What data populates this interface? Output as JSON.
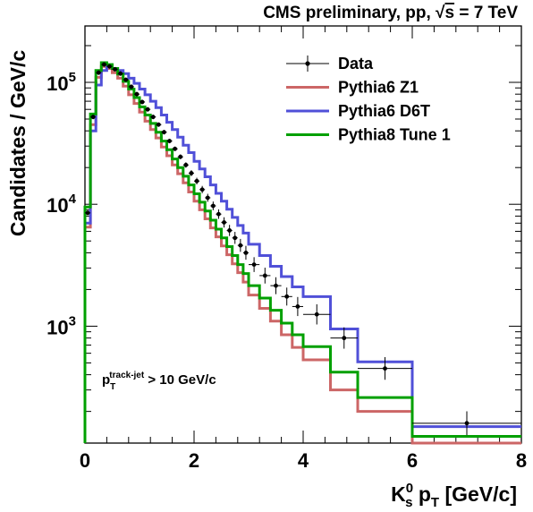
{
  "chart_data": {
    "type": "line",
    "title": "CMS preliminary, pp, √s = 7 TeV",
    "title_parts": {
      "prefix": "CMS preliminary, pp, ",
      "sqrt_symbol": "√",
      "sqrt_arg": "s",
      "suffix": " = 7 TeV"
    },
    "xlabel": "K_S^0 p_T [GeV/c]",
    "xlabel_parts": {
      "main": "K",
      "sup": "0",
      "sub": "s",
      "mid": " p",
      "sub2": "T",
      "tail": " [GeV/c]"
    },
    "ylabel": "Candidates / GeV/c",
    "xlim": [
      0,
      8
    ],
    "ylim": [
      110,
      290000
    ],
    "yscale": "log",
    "x_ticks": [
      "0",
      "2",
      "4",
      "6",
      "8"
    ],
    "y_ticks": [
      {
        "value": 1000,
        "base": "10",
        "exp": "3"
      },
      {
        "value": 10000,
        "base": "10",
        "exp": "4"
      },
      {
        "value": 100000,
        "base": "10",
        "exp": "5"
      }
    ],
    "annotation": {
      "p": "p",
      "sub": "T",
      "sup": "track-jet",
      "rest": " > 10 GeV/c"
    },
    "legend_position": "top-right",
    "bin_edges": [
      0,
      0.1,
      0.2,
      0.3,
      0.4,
      0.5,
      0.6,
      0.7,
      0.8,
      0.9,
      1.0,
      1.1,
      1.2,
      1.3,
      1.4,
      1.5,
      1.6,
      1.7,
      1.8,
      1.9,
      2.0,
      2.1,
      2.2,
      2.3,
      2.4,
      2.5,
      2.6,
      2.7,
      2.8,
      2.9,
      3.0,
      3.2,
      3.4,
      3.6,
      3.8,
      4.0,
      4.5,
      5.0,
      6.0,
      8.0
    ],
    "series": [
      {
        "name": "Data",
        "color": "#000000",
        "style": "points",
        "values": [
          8500,
          52000,
          120000,
          140000,
          135000,
          128000,
          118000,
          105000,
          92000,
          80000,
          69000,
          60000,
          52000,
          45000,
          39000,
          33000,
          28500,
          24500,
          21000,
          18000,
          15500,
          13200,
          11300,
          9700,
          8300,
          7100,
          6100,
          5300,
          4600,
          4000,
          3200,
          2600,
          2150,
          1750,
          1450,
          1250,
          800,
          450,
          160
        ]
      },
      {
        "name": "Pythia6 Z1",
        "color": "#cc6666",
        "style": "step",
        "values": [
          6500,
          45000,
          110000,
          135000,
          130000,
          120000,
          108000,
          93000,
          79000,
          67000,
          57000,
          48000,
          41000,
          35000,
          29500,
          25000,
          21000,
          17800,
          15000,
          12600,
          10600,
          9000,
          7600,
          6400,
          5400,
          4550,
          3850,
          3250,
          2750,
          2300,
          1800,
          1400,
          1100,
          850,
          670,
          530,
          300,
          200,
          110
        ]
      },
      {
        "name": "Pythia6 D6T",
        "color": "#5050d8",
        "style": "step",
        "values": [
          7000,
          40000,
          95000,
          125000,
          135000,
          130000,
          125000,
          118000,
          108000,
          98000,
          88000,
          79000,
          70000,
          62000,
          54000,
          47000,
          41000,
          35500,
          30500,
          26500,
          22500,
          19500,
          16800,
          14400,
          12300,
          10600,
          9100,
          7800,
          6700,
          5800,
          4700,
          3800,
          3100,
          2550,
          2100,
          1750,
          950,
          510,
          150
        ]
      },
      {
        "name": "Pythia8 Tune 1",
        "color": "#00a000",
        "style": "step",
        "values": [
          9500,
          55000,
          125000,
          145000,
          140000,
          130000,
          117000,
          102000,
          88000,
          75000,
          63000,
          54000,
          46000,
          39000,
          33000,
          28000,
          23500,
          20000,
          17000,
          14400,
          12200,
          10400,
          8800,
          7400,
          6250,
          5300,
          4500,
          3800,
          3200,
          2700,
          2150,
          1700,
          1350,
          1060,
          850,
          680,
          420,
          260,
          125
        ]
      }
    ]
  }
}
